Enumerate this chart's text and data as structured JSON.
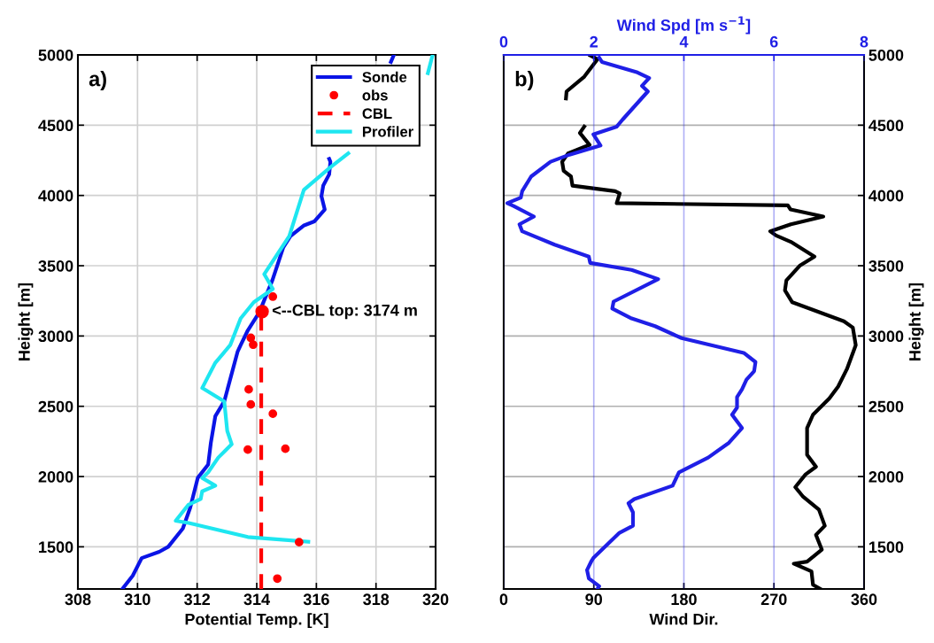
{
  "chart_data": [
    {
      "type": "line",
      "xlabel": "Potential Temp. [K]",
      "ylabel": "Height [m]",
      "xlim": [
        308,
        320
      ],
      "xticks": [
        308,
        310,
        312,
        314,
        316,
        318,
        320
      ],
      "ylim": [
        1200,
        5000
      ],
      "yticks": [
        1500,
        2000,
        2500,
        3000,
        3500,
        4000,
        4500,
        5000
      ],
      "grid": true,
      "legend": "top right",
      "annotations": [
        "a)",
        {
          "text": "<--CBL top: 3174 m",
          "x": 314.18,
          "y": 3174
        }
      ],
      "series": [
        {
          "name": "Sonde",
          "color": "#0a14e6",
          "marker": "none",
          "line_style": "solid",
          "x": [
            309.49,
            309.84,
            310.14,
            310.73,
            311.03,
            311.52,
            311.77,
            312.02,
            312.37,
            312.46,
            312.61,
            312.91,
            313.36,
            313.46,
            313.7,
            314.09,
            314.53,
            314.89,
            315.13,
            315.57,
            315.93,
            316.28,
            316.17,
            316.23,
            316.43,
            316.47,
            316.43,
            null,
            318.5,
            318.6
          ],
          "values": [
            1200,
            1295,
            1420,
            1465,
            1500,
            1630,
            1780,
            1990,
            2085,
            2240,
            2430,
            2535,
            2890,
            2935,
            3040,
            3170,
            3400,
            3630,
            3710,
            3785,
            3815,
            3900,
            3995,
            4070,
            4150,
            4240,
            4260,
            null,
            4950,
            5000
          ]
        },
        {
          "name": "obs",
          "type": "scatter",
          "color": "#ff0000",
          "marker": "circle",
          "x": [
            314.69,
            315.42,
            313.7,
            314.96,
            314.54,
            313.8,
            313.73,
            313.88,
            313.8,
            314.54
          ],
          "values": [
            1274,
            1533,
            2192,
            2198,
            2447,
            2513,
            2620,
            2938,
            2987,
            3280
          ]
        },
        {
          "name": "CBL",
          "color": "#ff0000",
          "line_style": "dashed",
          "x": [
            314.15,
            314.15
          ],
          "values": [
            1200,
            3174
          ]
        },
        {
          "name": "Profiler",
          "color": "#1ee6f0",
          "marker": "none",
          "line_style": "solid",
          "x": [
            315.73,
            313.7,
            311.72,
            311.28,
            311.71,
            312.12,
            312.17,
            312.61,
            312.17,
            312.37,
            312.71,
            313.16,
            313.01,
            312.91,
            312.17,
            312.61,
            313.11,
            313.46,
            313.9,
            314.54,
            314.25,
            315.09,
            315.58,
            316.47,
            317.07,
            null,
            319.74,
            319.9
          ],
          "values": [
            1536,
            1570,
            1670,
            1685,
            1800,
            1840,
            1895,
            1935,
            1990,
            2030,
            2135,
            2230,
            2325,
            2535,
            2630,
            2810,
            2935,
            3125,
            3240,
            3335,
            3440,
            3710,
            4040,
            4200,
            4300,
            null,
            4870,
            5000
          ]
        }
      ]
    },
    {
      "type": "line",
      "xlabel": "Wind Dir.",
      "x2label": "Wind Spd [m s$^{−1}$]",
      "ylabel": "Height [m]",
      "xlim": [
        0,
        360
      ],
      "xticks": [
        0,
        90,
        180,
        270,
        360
      ],
      "x2lim": [
        0,
        8
      ],
      "x2ticks": [
        0,
        2,
        4,
        6,
        8
      ],
      "ylim": [
        1200,
        5000
      ],
      "yticks": [
        1500,
        2000,
        2500,
        3000,
        3500,
        4000,
        4500,
        5000
      ],
      "grid": true,
      "annotations": [
        "b)"
      ],
      "series": [
        {
          "color": "#000000",
          "marker": "none",
          "line_style": "solid",
          "x": [
            86.4,
            93.8,
            80.5,
            62.8,
            62.2,
            null,
            80.5,
            76.1,
            85.8,
            64.3,
            58.4,
            59.9,
            67.2,
            68.7,
            111.4,
            115.9,
            112.9,
            283.9,
            286.6,
            319.3,
            286.9,
            266.2,
            272.1,
            286.9,
            310.5,
            295.7,
            282.4,
            281.0,
            288.3,
            339.9,
            348.8,
            351.7,
            342.9,
            334.1,
            325.2,
            309.0,
            303.1,
            303.1,
            312.0,
            301.6,
            291.3,
            298.7,
            314.9,
            320.8,
            312.0,
            317.8,
            303.1,
            289.8,
            307.5,
            309.0,
            316.4
          ],
          "values": [
            4996,
            4970,
            4845,
            4740,
            4690,
            null,
            4490,
            4445,
            4360,
            4300,
            4240,
            4175,
            4135,
            4070,
            4030,
            4015,
            3945,
            3930,
            3900,
            3850,
            3795,
            3745,
            3715,
            3670,
            3565,
            3500,
            3395,
            3325,
            3240,
            3105,
            3060,
            2935,
            2765,
            2640,
            2555,
            2440,
            2345,
            2155,
            2070,
            2015,
            1925,
            1860,
            1765,
            1650,
            1585,
            1480,
            1395,
            1380,
            1325,
            1230,
            1200
          ]
        },
        {
          "axis": "x2",
          "color": "#1f1fe6",
          "marker": "none",
          "line_style": "solid",
          "x": [
            2.12,
            2.18,
            2.97,
            3.23,
            3.07,
            3.2,
            2.64,
            2.51,
            1.99,
            2.15,
            1.46,
            1.04,
            0.61,
            0.41,
            0.38,
            0.08,
            0.22,
            0.67,
            0.35,
            0.41,
            1.13,
            1.89,
            1.92,
            2.84,
            3.43,
            2.44,
            2.41,
            2.84,
            3.36,
            3.95,
            5.33,
            5.59,
            5.56,
            5.39,
            5.29,
            5.18,
            5.18,
            5.07,
            5.29,
            5.0,
            4.54,
            3.89,
            3.75,
            2.9,
            2.77,
            2.87,
            2.87,
            2.57,
            1.99,
            1.95,
            1.85,
            1.89,
            2.12,
            2.08
          ],
          "values": [
            4980,
            4950,
            4875,
            4835,
            4780,
            4740,
            4540,
            4490,
            4435,
            4355,
            4290,
            4240,
            4135,
            4030,
            3985,
            3945,
            3925,
            3850,
            3795,
            3745,
            3650,
            3565,
            3520,
            3470,
            3405,
            3245,
            3195,
            3125,
            3070,
            2985,
            2880,
            2815,
            2750,
            2690,
            2620,
            2565,
            2490,
            2440,
            2345,
            2240,
            2135,
            2030,
            1935,
            1840,
            1810,
            1745,
            1650,
            1600,
            1420,
            1400,
            1335,
            1275,
            1220,
            1200
          ]
        }
      ]
    }
  ]
}
